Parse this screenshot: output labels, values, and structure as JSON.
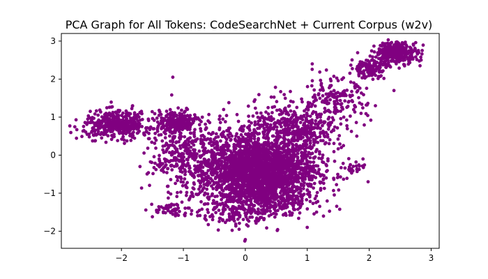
{
  "chart_data": {
    "type": "scatter",
    "title": "PCA Graph for All Tokens: CodeSearchNet + Current Corpus (w2v)",
    "xlabel": "",
    "ylabel": "",
    "xlim": [
      -2.97,
      3.13
    ],
    "ylim": [
      -2.45,
      3.2
    ],
    "xticks": [
      {
        "value": -2,
        "label": "−2"
      },
      {
        "value": -1,
        "label": "−1"
      },
      {
        "value": 0,
        "label": "0"
      },
      {
        "value": 1,
        "label": "1"
      },
      {
        "value": 2,
        "label": "2"
      },
      {
        "value": 3,
        "label": "3"
      }
    ],
    "yticks": [
      {
        "value": -2,
        "label": "−2"
      },
      {
        "value": -1,
        "label": "−1"
      },
      {
        "value": 0,
        "label": "0"
      },
      {
        "value": 1,
        "label": "1"
      },
      {
        "value": 2,
        "label": "2"
      },
      {
        "value": 3,
        "label": "3"
      }
    ],
    "grid": false,
    "marker_color": "#800080",
    "clusters": [
      {
        "cx": 0.25,
        "cy": -0.45,
        "sx": 0.45,
        "sy": 0.45,
        "n": 1800
      },
      {
        "cx": 0.0,
        "cy": -0.2,
        "sx": 0.6,
        "sy": 0.5,
        "n": 700
      },
      {
        "cx": 0.3,
        "cy": -1.2,
        "sx": 0.35,
        "sy": 0.25,
        "n": 250
      },
      {
        "cx": -2.05,
        "cy": 0.8,
        "sx": 0.28,
        "sy": 0.18,
        "n": 420
      },
      {
        "cx": -1.1,
        "cy": 0.85,
        "sx": 0.16,
        "sy": 0.15,
        "n": 220
      },
      {
        "cx": -1.0,
        "cy": 0.0,
        "sx": 0.28,
        "sy": 0.45,
        "n": 260
      },
      {
        "cx": 2.45,
        "cy": 2.7,
        "sx": 0.17,
        "sy": 0.14,
        "n": 320
      },
      {
        "cx": 2.0,
        "cy": 2.3,
        "sx": 0.15,
        "sy": 0.13,
        "n": 130
      },
      {
        "cx": 1.45,
        "cy": 1.4,
        "sx": 0.25,
        "sy": 0.3,
        "n": 160
      },
      {
        "cx": 0.9,
        "cy": 0.7,
        "sx": 0.35,
        "sy": 0.25,
        "n": 240
      },
      {
        "cx": -1.2,
        "cy": -1.45,
        "sx": 0.15,
        "sy": 0.1,
        "n": 50
      },
      {
        "cx": 1.8,
        "cy": -0.35,
        "sx": 0.08,
        "sy": 0.08,
        "n": 20
      },
      {
        "cx": -0.2,
        "cy": -1.55,
        "sx": 0.3,
        "sy": 0.15,
        "n": 80
      },
      {
        "cx": 0.6,
        "cy": 0.8,
        "sx": 0.4,
        "sy": 0.35,
        "n": 180
      }
    ],
    "outliers": [
      {
        "x": -1.17,
        "y": 2.05
      },
      {
        "x": 1.08,
        "y": 2.4
      },
      {
        "x": 2.82,
        "y": 2.35
      },
      {
        "x": -2.72,
        "y": 0.67
      },
      {
        "x": -1.5,
        "y": -1.62
      },
      {
        "x": 0.0,
        "y": -2.22
      },
      {
        "x": -0.1,
        "y": -1.95
      },
      {
        "x": 1.0,
        "y": -1.9
      },
      {
        "x": -0.35,
        "y": 1.2
      },
      {
        "x": -0.6,
        "y": 0.9
      },
      {
        "x": 1.9,
        "y": -0.1
      },
      {
        "x": -1.35,
        "y": -0.4
      },
      {
        "x": -1.7,
        "y": -0.3
      },
      {
        "x": 2.1,
        "y": 1.3
      },
      {
        "x": 2.4,
        "y": 1.7
      },
      {
        "x": 1.8,
        "y": 0.5
      },
      {
        "x": 1.55,
        "y": 0.2
      }
    ]
  }
}
